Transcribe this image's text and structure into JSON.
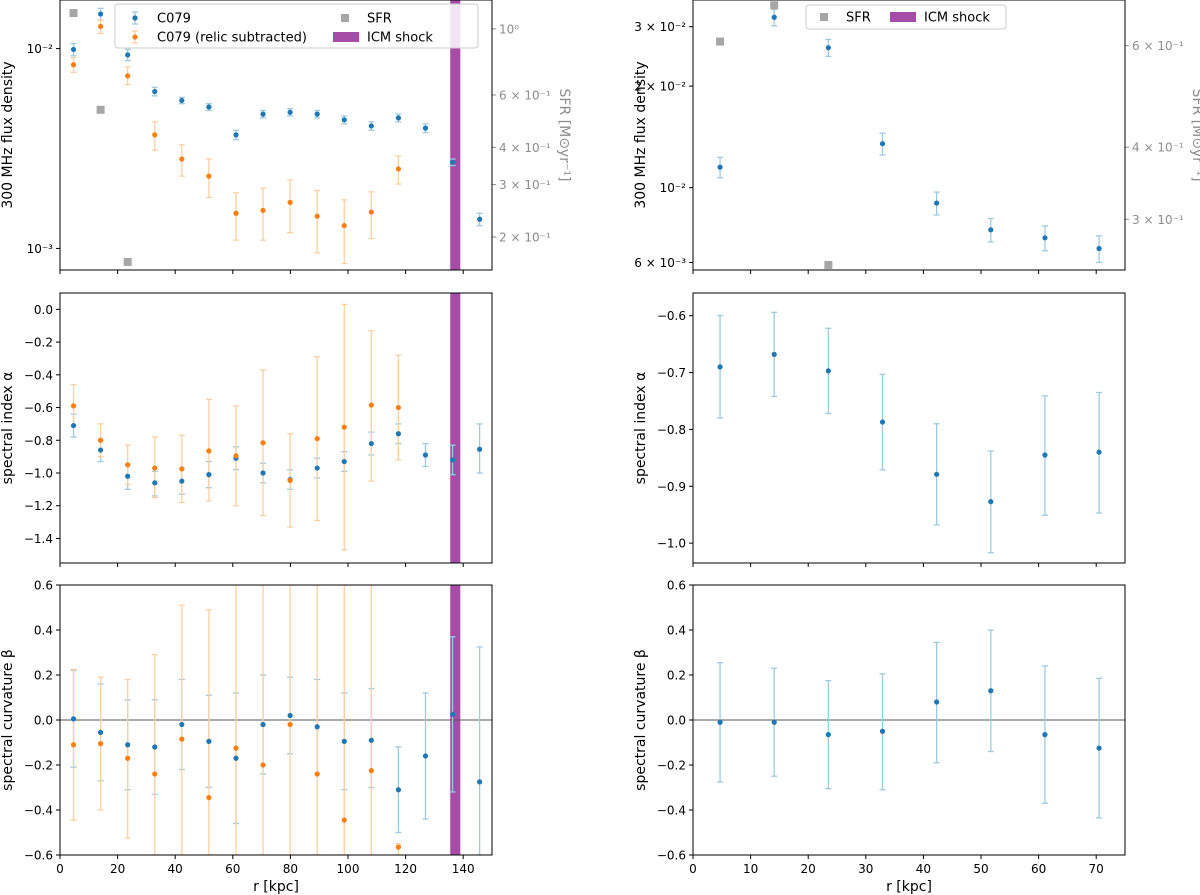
{
  "colors": {
    "c079": "#1f77b4",
    "c079_err": "#9ecae1",
    "relic": "#ff7f0e",
    "relic_err": "#fdd0a2",
    "sfr": "#a6a6a6",
    "sfr_label": "#8c8c8c",
    "shock": "#a64ca6"
  },
  "chart_data": [
    {
      "id": "left-flux",
      "type": "scatter",
      "ylabel": "300 MHz flux density",
      "y2label": "SFR [M⊙yr⁻¹]",
      "yscale": "log",
      "ylim": [
        0.00078,
        0.0175
      ],
      "y2lim": [
        0.155,
        1.25
      ],
      "xlim": [
        0,
        150
      ],
      "yticks": [
        {
          "v": 0.01,
          "label": "10⁻²"
        },
        {
          "v": 0.001,
          "label": "10⁻³"
        }
      ],
      "y2ticks": [
        {
          "v": 1.0,
          "label": "10⁰"
        },
        {
          "v": 0.6,
          "label": "6 × 10⁻¹"
        },
        {
          "v": 0.4,
          "label": "4 × 10⁻¹"
        },
        {
          "v": 0.3,
          "label": "3 × 10⁻¹"
        },
        {
          "v": 0.2,
          "label": "2 × 10⁻¹"
        }
      ],
      "shock": [
        135.5,
        139
      ],
      "series": [
        {
          "name": "C079",
          "x": [
            4.7,
            14.1,
            23.5,
            32.9,
            42.3,
            51.7,
            61.1,
            70.5,
            79.9,
            89.3,
            98.7,
            108.1,
            117.5,
            126.9,
            136.3,
            145.7
          ],
          "y": [
            0.0099,
            0.0149,
            0.0093,
            0.0061,
            0.0055,
            0.0051,
            0.0037,
            0.0047,
            0.0048,
            0.0047,
            0.0044,
            0.0041,
            0.0045,
            0.004,
            0.0027,
            0.0014
          ],
          "lo": [
            0.0092,
            0.0139,
            0.0087,
            0.0058,
            0.0053,
            0.0049,
            0.0035,
            0.0045,
            0.0046,
            0.0045,
            0.0042,
            0.0039,
            0.0043,
            0.0038,
            0.0026,
            0.0013
          ],
          "hi": [
            0.0106,
            0.0159,
            0.0099,
            0.0064,
            0.0057,
            0.0053,
            0.0039,
            0.0049,
            0.005,
            0.0049,
            0.0046,
            0.0043,
            0.0047,
            0.0042,
            0.0028,
            0.0015
          ]
        },
        {
          "name": "C079 (relic subtracted)",
          "x": [
            4.7,
            14.1,
            23.5,
            32.9,
            42.3,
            51.7,
            61.1,
            70.5,
            79.9,
            89.3,
            98.7,
            108.1,
            117.5
          ],
          "y": [
            0.0083,
            0.0129,
            0.0073,
            0.0037,
            0.0028,
            0.0023,
            0.0015,
            0.00155,
            0.0017,
            0.00145,
            0.0013,
            0.00152,
            0.0025
          ],
          "lo": [
            0.0076,
            0.0119,
            0.0066,
            0.0031,
            0.0023,
            0.0018,
            0.0011,
            0.0011,
            0.0012,
            0.00095,
            0.00084,
            0.00112,
            0.0021
          ],
          "hi": [
            0.009,
            0.0139,
            0.0081,
            0.0043,
            0.0033,
            0.0028,
            0.0019,
            0.002,
            0.0022,
            0.00195,
            0.00175,
            0.00192,
            0.0029
          ]
        }
      ],
      "sfr": {
        "name": "SFR",
        "x": [
          4.7,
          14.1,
          23.5
        ],
        "y": [
          1.13,
          0.535,
          0.165
        ]
      },
      "legend": [
        {
          "key": "c079",
          "label": "C079"
        },
        {
          "key": "relic",
          "label": "C079 (relic subtracted)"
        },
        {
          "key": "sfr",
          "label": "SFR"
        },
        {
          "key": "shock",
          "label": "ICM shock"
        }
      ]
    },
    {
      "id": "left-alpha",
      "type": "scatter",
      "ylabel": "spectral index α",
      "ylim": [
        -1.55,
        0.1
      ],
      "xlim": [
        0,
        150
      ],
      "yticks": [
        0.0,
        -0.2,
        -0.4,
        -0.6,
        -0.8,
        -1.0,
        -1.2,
        -1.4
      ],
      "shock": [
        135.5,
        139
      ],
      "series": [
        {
          "name": "C079",
          "x": [
            4.7,
            14.1,
            23.5,
            32.9,
            42.3,
            51.7,
            61.1,
            70.5,
            79.9,
            89.3,
            98.7,
            108.1,
            117.5,
            126.9,
            136.3,
            145.7
          ],
          "y": [
            -0.71,
            -0.86,
            -1.02,
            -1.06,
            -1.05,
            -1.01,
            -0.91,
            -1.0,
            -1.04,
            -0.97,
            -0.93,
            -0.82,
            -0.76,
            -0.89,
            -0.92,
            -0.855
          ],
          "lo": [
            -0.78,
            -0.93,
            -1.1,
            -1.14,
            -1.13,
            -1.09,
            -0.98,
            -1.06,
            -1.1,
            -1.03,
            -0.99,
            -0.89,
            -0.82,
            -0.96,
            -1.01,
            -1.0
          ],
          "hi": [
            -0.64,
            -0.8,
            -0.95,
            -0.99,
            -0.97,
            -0.93,
            -0.84,
            -0.94,
            -0.98,
            -0.91,
            -0.87,
            -0.75,
            -0.7,
            -0.82,
            -0.83,
            -0.7
          ]
        },
        {
          "name": "C079 (relic subtracted)",
          "x": [
            4.7,
            14.1,
            23.5,
            32.9,
            42.3,
            51.7,
            61.1,
            70.5,
            79.9,
            89.3,
            98.7,
            108.1,
            117.5
          ],
          "y": [
            -0.59,
            -0.8,
            -0.95,
            -0.97,
            -0.975,
            -0.865,
            -0.895,
            -0.815,
            -1.045,
            -0.79,
            -0.72,
            -0.585,
            -0.6
          ],
          "lo": [
            -0.71,
            -0.9,
            -1.07,
            -1.15,
            -1.18,
            -1.17,
            -1.2,
            -1.26,
            -1.33,
            -1.29,
            -1.47,
            -1.05,
            -0.92
          ],
          "hi": [
            -0.46,
            -0.7,
            -0.83,
            -0.78,
            -0.77,
            -0.55,
            -0.59,
            -0.37,
            -0.76,
            -0.29,
            0.03,
            -0.13,
            -0.28
          ]
        }
      ]
    },
    {
      "id": "left-beta",
      "type": "scatter",
      "ylabel": "spectral curvature β",
      "xlabel": "r [kpc]",
      "ylim": [
        -0.6,
        0.6
      ],
      "xlim": [
        0,
        150
      ],
      "yticks": [
        0.6,
        0.4,
        0.2,
        0.0,
        -0.2,
        -0.4,
        -0.6
      ],
      "xticks": [
        0,
        20,
        40,
        60,
        80,
        100,
        120,
        140
      ],
      "zero_line": true,
      "shock": [
        135.5,
        139
      ],
      "series": [
        {
          "name": "C079",
          "x": [
            4.7,
            14.1,
            23.5,
            32.9,
            42.3,
            51.7,
            61.1,
            70.5,
            79.9,
            89.3,
            98.7,
            108.1,
            117.5,
            126.9,
            136.3,
            145.7
          ],
          "y": [
            0.005,
            -0.055,
            -0.11,
            -0.12,
            -0.02,
            -0.095,
            -0.17,
            -0.02,
            0.02,
            -0.03,
            -0.095,
            -0.09,
            -0.31,
            -0.16,
            0.025,
            -0.275
          ],
          "lo": [
            -0.21,
            -0.27,
            -0.31,
            -0.33,
            -0.22,
            -0.3,
            -0.46,
            -0.24,
            -0.15,
            -0.24,
            -0.31,
            -0.3,
            -0.5,
            -0.44,
            -0.32,
            -0.6
          ],
          "hi": [
            0.22,
            0.16,
            0.09,
            0.09,
            0.18,
            0.11,
            0.12,
            0.2,
            0.19,
            0.18,
            0.12,
            0.14,
            -0.12,
            0.12,
            0.37,
            0.325
          ]
        },
        {
          "name": "C079 (relic subtracted)",
          "x": [
            4.7,
            14.1,
            23.5,
            32.9,
            42.3,
            51.7,
            61.1,
            70.5,
            79.9,
            89.3,
            98.7,
            108.1,
            117.5
          ],
          "y": [
            -0.11,
            -0.105,
            -0.17,
            -0.24,
            -0.085,
            -0.345,
            -0.125,
            -0.2,
            -0.02,
            -0.24,
            -0.445,
            -0.225,
            -0.565
          ],
          "lo": [
            -0.445,
            -0.4,
            -0.525,
            -0.6,
            -0.6,
            -0.6,
            -0.6,
            -0.6,
            -0.6,
            -0.6,
            -0.6,
            -0.6,
            -0.6
          ],
          "hi": [
            0.225,
            0.19,
            0.18,
            0.29,
            0.51,
            0.49,
            0.6,
            0.6,
            0.6,
            0.6,
            0.6,
            0.6,
            -0.55
          ]
        }
      ]
    },
    {
      "id": "right-flux",
      "type": "scatter",
      "ylabel": "300 MHz flux density",
      "y2label": "SFR [M⊙yr⁻¹]",
      "yscale": "log",
      "ylim": [
        0.0057,
        0.036
      ],
      "y2lim": [
        0.245,
        0.72
      ],
      "xlim": [
        0,
        75
      ],
      "yticks": [
        {
          "v": 0.03,
          "label": "3 × 10⁻²"
        },
        {
          "v": 0.02,
          "label": "2 × 10⁻²"
        },
        {
          "v": 0.01,
          "label": "10⁻²"
        },
        {
          "v": 0.006,
          "label": "6 × 10⁻³"
        }
      ],
      "y2ticks": [
        {
          "v": 0.6,
          "label": "6 × 10⁻¹"
        },
        {
          "v": 0.4,
          "label": "4 × 10⁻¹"
        },
        {
          "v": 0.3,
          "label": "3 × 10⁻¹"
        }
      ],
      "series": [
        {
          "name": "C079",
          "x": [
            4.7,
            14.1,
            23.5,
            32.9,
            42.3,
            51.7,
            61.1,
            70.5
          ],
          "y": [
            0.0115,
            0.032,
            0.026,
            0.0135,
            0.009,
            0.0075,
            0.0071,
            0.0066
          ],
          "lo": [
            0.0107,
            0.0302,
            0.0245,
            0.0125,
            0.0083,
            0.0069,
            0.0065,
            0.006
          ],
          "hi": [
            0.0123,
            0.0338,
            0.0275,
            0.0145,
            0.0097,
            0.0081,
            0.0077,
            0.0072
          ]
        }
      ],
      "sfr": {
        "name": "SFR",
        "x": [
          4.7,
          14.1,
          23.5
        ],
        "y": [
          0.61,
          0.705,
          0.25
        ]
      },
      "legend": [
        {
          "key": "sfr",
          "label": "SFR"
        },
        {
          "key": "shock",
          "label": "ICM shock"
        }
      ]
    },
    {
      "id": "right-alpha",
      "type": "scatter",
      "ylabel": "spectral index α",
      "ylim": [
        -1.035,
        -0.56
      ],
      "xlim": [
        0,
        75
      ],
      "yticks": [
        -0.6,
        -0.7,
        -0.8,
        -0.9,
        -1.0
      ],
      "series": [
        {
          "name": "C079",
          "x": [
            4.7,
            14.1,
            23.5,
            32.9,
            42.3,
            51.7,
            61.1,
            70.5
          ],
          "y": [
            -0.69,
            -0.668,
            -0.697,
            -0.787,
            -0.879,
            -0.927,
            -0.845,
            -0.84
          ],
          "lo": [
            -0.78,
            -0.742,
            -0.772,
            -0.871,
            -0.968,
            -1.017,
            -0.951,
            -0.947
          ],
          "hi": [
            -0.6,
            -0.594,
            -0.622,
            -0.703,
            -0.79,
            -0.838,
            -0.741,
            -0.735
          ]
        }
      ]
    },
    {
      "id": "right-beta",
      "type": "scatter",
      "ylabel": "spectral curvature β",
      "xlabel": "r [kpc]",
      "ylim": [
        -0.6,
        0.6
      ],
      "xlim": [
        0,
        75
      ],
      "yticks": [
        0.6,
        0.4,
        0.2,
        0.0,
        -0.2,
        -0.4,
        -0.6
      ],
      "xticks": [
        0,
        10,
        20,
        30,
        40,
        50,
        60,
        70
      ],
      "zero_line": true,
      "series": [
        {
          "name": "C079",
          "x": [
            4.7,
            14.1,
            23.5,
            32.9,
            42.3,
            51.7,
            61.1,
            70.5
          ],
          "y": [
            -0.01,
            -0.01,
            -0.065,
            -0.05,
            0.08,
            0.13,
            -0.065,
            -0.125
          ],
          "lo": [
            -0.275,
            -0.25,
            -0.305,
            -0.31,
            -0.19,
            -0.14,
            -0.37,
            -0.435
          ],
          "hi": [
            0.255,
            0.23,
            0.175,
            0.205,
            0.345,
            0.4,
            0.24,
            0.185
          ]
        }
      ]
    }
  ]
}
